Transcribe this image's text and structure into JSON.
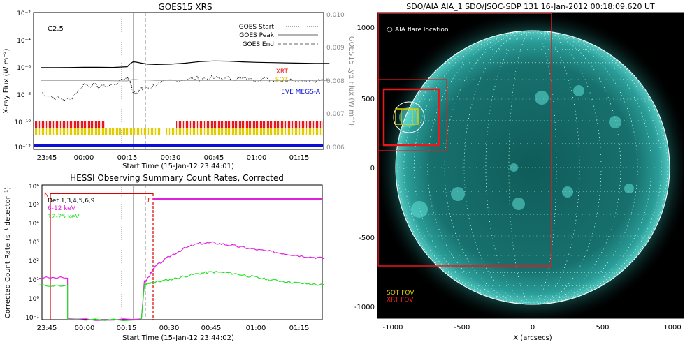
{
  "goes": {
    "title": "GOES15 XRS",
    "class_label": "C2.5",
    "ylabel": "X-ray Flux (W m⁻²)",
    "y2label": "GOES15 Lyα Flux (W m⁻²)",
    "xlabel": "Start Time (15-Jan-12 23:44:01)",
    "xticks": [
      "23:45",
      "00:00",
      "00:15",
      "00:30",
      "00:45",
      "01:00",
      "01:15"
    ],
    "yticks": [
      "10⁻²",
      "10⁻⁴",
      "10⁻⁶",
      "10⁻⁸",
      "10⁻¹⁰",
      "10⁻¹²"
    ],
    "y2ticks": [
      "0.010",
      "0.009",
      "0.008",
      "0.007",
      "0.006"
    ],
    "legend": [
      "GOES Start",
      "GOES Peak",
      "GOES End"
    ],
    "instruments": [
      "XRT",
      "SOT",
      "EVE MEGS-A"
    ],
    "colors": {
      "xrt": "#e8191c",
      "sot": "#e0cc00",
      "eve": "#0a10d8"
    }
  },
  "hessi": {
    "title": "HESSI Observing Summary Count Rates, Corrected",
    "ylabel": "Corrected Count Rate (s⁻¹ detector⁻¹)",
    "xlabel": "Start Time (15-Jan-12 23:44:02)",
    "xticks": [
      "23:45",
      "00:00",
      "00:15",
      "00:30",
      "00:45",
      "01:00",
      "01:15"
    ],
    "yticks": [
      "10⁶",
      "10⁵",
      "10⁴",
      "10³",
      "10²",
      "10¹",
      "10⁰",
      "10⁻¹"
    ],
    "det_label": "Det 1,3,4,5,6,9",
    "band1": "6-12 keV",
    "band2": "12-25 keV",
    "flag_n": "N",
    "flag_f": "F",
    "colors": {
      "band1": "#e020e0",
      "band2": "#22e022",
      "flag": "#dd0000"
    }
  },
  "aia": {
    "title": "SDO/AIA AIA_1 SDO/JSOC-SDP 131 16-Jan-2012 00:18:09.620 UT",
    "flare_label": "AIA flare location",
    "sot_fov": "SOT FOV",
    "xrt_fov": "XRT FOV",
    "xlabel": "X (arcsecs)",
    "xticks": [
      "-1000",
      "-500",
      "0",
      "500",
      "1000"
    ],
    "yticks": [
      "1000",
      "500",
      "0",
      "-500",
      "-1000"
    ],
    "colors": {
      "sun": "#1f8f8a",
      "bg": "#000000"
    }
  },
  "chart_data": [
    {
      "type": "line",
      "title": "GOES15 XRS",
      "xlabel": "Start Time (15-Jan-12 23:44:01)",
      "ylabel": "X-ray Flux (W m⁻²)",
      "y_scale": "log",
      "ylim": [
        1e-12,
        0.01
      ],
      "x_ticks": [
        "23:45",
        "00:00",
        "00:15",
        "00:30",
        "00:45",
        "01:00",
        "01:15"
      ],
      "x": [
        -15,
        -10,
        -5,
        0,
        5,
        10,
        15,
        16,
        17,
        18,
        20,
        22,
        25,
        30,
        35,
        40,
        45,
        50,
        55,
        60,
        65,
        70,
        75,
        80,
        85
      ],
      "series": [
        {
          "values": [
            9.5e-07,
            9.5e-07,
            9.6e-07,
            1e-06,
            1e-06,
            9.8e-07,
            1.1e-06,
            1.8e-06,
            2.5e-06,
            2.4e-06,
            2e-06,
            1.7e-06,
            1.6e-06,
            1.7e-06,
            2e-06,
            2.6e-06,
            2.9e-06,
            2.8e-06,
            2.5e-06,
            2.3e-06,
            2.2e-06,
            2.1e-06,
            2e-06,
            1.9e-06,
            1.9e-06
          ]
        },
        {
          "values": [
            1.5e-08,
            6e-09,
            4e-09,
            6e-08,
            4e-08,
            5e-08,
            2e-07,
            1e-07,
            1.3e-08,
            1.5e-08,
            2.5e-08,
            3e-08,
            5e-08,
            1e-07,
            1.3e-07,
            1.5e-07,
            1.6e-07,
            1.5e-07,
            1.4e-07,
            1.4e-07,
            1.3e-07,
            1.2e-07,
            1.2e-07,
            1.1e-07,
            1.1e-07
          ]
        }
      ],
      "markers": {
        "GOES Start": "00:15",
        "GOES Peak": "00:18",
        "GOES End": "00:22"
      }
    },
    {
      "type": "line",
      "title": "HESSI Observing Summary Count Rates, Corrected",
      "xlabel": "Start Time (15-Jan-12 23:44:02)",
      "ylabel": "Corrected Count Rate (s⁻¹ detector⁻¹)",
      "y_scale": "log",
      "ylim": [
        0.1,
        1000000.0
      ],
      "x_ticks": [
        "23:45",
        "00:00",
        "00:15",
        "00:30",
        "00:45",
        "01:00",
        "01:15"
      ],
      "series": [
        {
          "name": "6-12 keV",
          "x": [
            -16,
            -6,
            -6,
            20,
            21,
            22,
            24,
            25,
            30,
            35,
            40,
            45,
            50,
            55,
            60,
            65,
            70,
            75,
            80,
            85
          ],
          "values": [
            15,
            15,
            0.1,
            0.1,
            10,
            12,
            40,
            60,
            200,
            500,
            900,
            1000,
            800,
            600,
            450,
            350,
            280,
            220,
            180,
            150
          ]
        },
        {
          "name": "12-25 keV",
          "x": [
            -16,
            -6,
            -6,
            20,
            21,
            22,
            24,
            25,
            30,
            35,
            40,
            45,
            50,
            55,
            60,
            65,
            70,
            75,
            80,
            85
          ],
          "values": [
            6,
            6,
            0.1,
            0.1,
            6,
            7,
            8,
            9,
            12,
            18,
            25,
            30,
            28,
            22,
            16,
            12,
            10,
            8,
            7,
            6
          ]
        }
      ]
    }
  ]
}
